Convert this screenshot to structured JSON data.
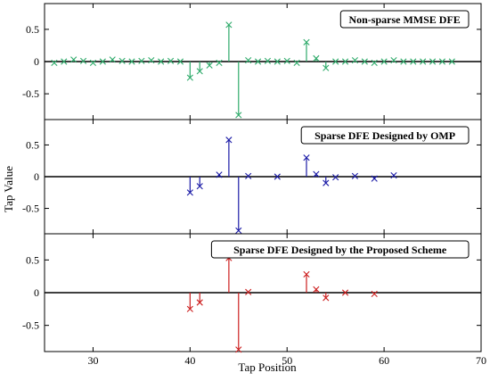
{
  "chart_data": {
    "type": "stem",
    "xlabel": "Tap Position",
    "ylabel": "Tap Value",
    "xlim": [
      25,
      70
    ],
    "xticks": [
      30,
      40,
      50,
      60,
      70
    ],
    "ylim": [
      -0.9,
      0.9
    ],
    "yticks": [
      0.5,
      0,
      -0.5
    ],
    "ytick_labels": [
      "0.5",
      "0",
      "-0.5"
    ],
    "marker": "x",
    "grid": false,
    "legend": "top-right",
    "panels": [
      {
        "legend": "Non-sparse MMSE DFE",
        "color": "#2eaa6a",
        "x": [
          26,
          27,
          28,
          29,
          30,
          31,
          32,
          33,
          34,
          35,
          36,
          37,
          38,
          39,
          40,
          41,
          42,
          43,
          44,
          45,
          46,
          47,
          48,
          49,
          50,
          51,
          52,
          53,
          54,
          55,
          56,
          57,
          58,
          59,
          60,
          61,
          62,
          63,
          64,
          65,
          66,
          67
        ],
        "y": [
          -0.02,
          0.0,
          0.03,
          0.01,
          -0.02,
          0.0,
          0.03,
          0.01,
          0.0,
          0.01,
          0.02,
          0.0,
          0.01,
          0.0,
          -0.25,
          -0.15,
          -0.06,
          -0.02,
          0.57,
          -0.83,
          0.02,
          0.0,
          0.01,
          0.0,
          0.01,
          -0.02,
          0.3,
          0.05,
          -0.1,
          0.0,
          0.0,
          0.02,
          0.0,
          -0.02,
          0.0,
          0.02,
          0.0,
          0.0,
          0.0,
          0.0,
          0.0,
          0.0
        ]
      },
      {
        "legend": "Sparse DFE Designed by OMP",
        "color": "#1a1aa6",
        "x": [
          40,
          41,
          43,
          44,
          45,
          46,
          49,
          52,
          53,
          54,
          55,
          57,
          59,
          61
        ],
        "y": [
          -0.25,
          -0.15,
          0.03,
          0.58,
          -0.85,
          0.01,
          0.0,
          0.3,
          0.04,
          -0.1,
          -0.01,
          0.01,
          -0.03,
          0.02
        ]
      },
      {
        "legend": "Sparse DFE Designed by the Proposed Scheme",
        "color": "#cc1f1f",
        "x": [
          40,
          41,
          44,
          45,
          46,
          52,
          53,
          54,
          56,
          59
        ],
        "y": [
          -0.25,
          -0.15,
          0.53,
          -0.87,
          0.01,
          0.28,
          0.05,
          -0.08,
          0.0,
          -0.02
        ]
      }
    ]
  }
}
